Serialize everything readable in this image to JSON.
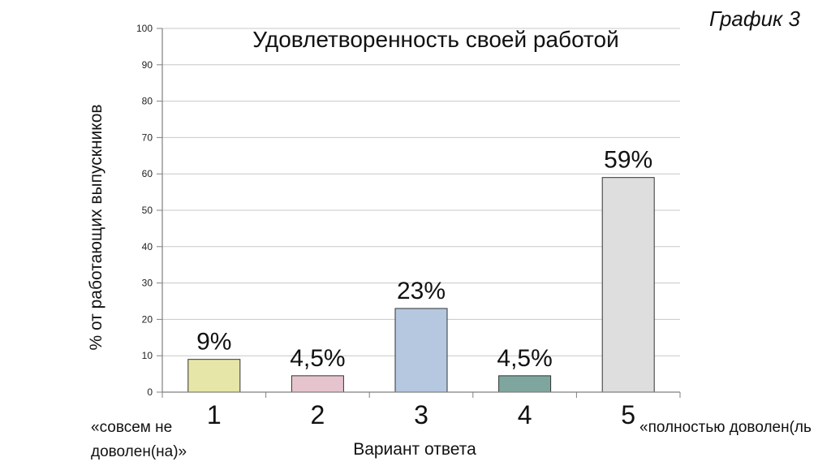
{
  "graph_label": "График 3",
  "notes": {
    "left": "«совсем не доволен(на)»",
    "right": "«полностью доволен(ль"
  },
  "chart_data": {
    "type": "bar",
    "title": "Удовлетворенность своей работой",
    "xlabel": "Вариант ответа",
    "ylabel": "% от работающих выпускников",
    "categories": [
      "1",
      "2",
      "3",
      "4",
      "5"
    ],
    "values": [
      9,
      4.5,
      23,
      4.5,
      59
    ],
    "data_labels": [
      "9%",
      "4,5%",
      "23%",
      "4,5%",
      "59%"
    ],
    "colors": [
      "#e6e6a8",
      "#e6c4cd",
      "#b6c8e0",
      "#7fa59f",
      "#dedede"
    ],
    "ylim": [
      0,
      100
    ],
    "yticks": [
      0,
      10,
      20,
      30,
      40,
      50,
      60,
      70,
      80,
      90,
      100
    ],
    "grid": true
  }
}
